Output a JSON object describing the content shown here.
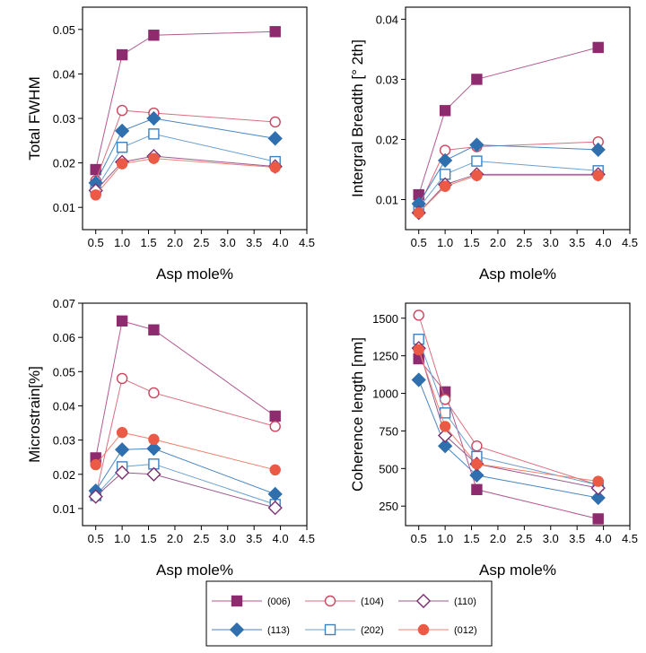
{
  "chart_data": [
    {
      "type": "line",
      "ylabel": "Total FWHM",
      "xlabel": "Asp mole%",
      "x": [
        0.5,
        1.0,
        1.6,
        3.9
      ],
      "xlim": [
        0.25,
        4.5
      ],
      "xticks": [
        "0.5",
        "1.0",
        "1.5",
        "2.0",
        "2.5",
        "3.0",
        "3.5",
        "4.0",
        "4.5"
      ],
      "ylim": [
        0.005,
        0.055
      ],
      "yticks": [
        "0.01",
        "0.02",
        "0.03",
        "0.04",
        "0.05"
      ],
      "series": [
        {
          "name": "(006)",
          "values": [
            0.0185,
            0.0443,
            0.0487,
            0.0495
          ]
        },
        {
          "name": "(104)",
          "values": [
            0.016,
            0.0318,
            0.0312,
            0.0292
          ]
        },
        {
          "name": "(110)",
          "values": [
            0.0138,
            0.0202,
            0.0215,
            0.0192
          ]
        },
        {
          "name": "(113)",
          "values": [
            0.0155,
            0.0272,
            0.03,
            0.0255
          ]
        },
        {
          "name": "(202)",
          "values": [
            0.014,
            0.0235,
            0.0265,
            0.0203
          ]
        },
        {
          "name": "(012)",
          "values": [
            0.0128,
            0.0198,
            0.021,
            0.019
          ]
        }
      ]
    },
    {
      "type": "line",
      "ylabel": "Intergral Breadth [° 2th]",
      "xlabel": "Asp mole%",
      "x": [
        0.5,
        1.0,
        1.6,
        3.9
      ],
      "xlim": [
        0.25,
        4.5
      ],
      "xticks": [
        "0.5",
        "1.0",
        "1.5",
        "2.0",
        "2.5",
        "3.0",
        "3.5",
        "4.0",
        "4.5"
      ],
      "ylim": [
        0.005,
        0.042
      ],
      "yticks": [
        "0.01",
        "0.02",
        "0.03",
        "0.04"
      ],
      "series": [
        {
          "name": "(006)",
          "values": [
            0.0108,
            0.0248,
            0.03,
            0.0353
          ]
        },
        {
          "name": "(104)",
          "values": [
            0.0088,
            0.0182,
            0.0188,
            0.0196
          ]
        },
        {
          "name": "(110)",
          "values": [
            0.0078,
            0.0125,
            0.0142,
            0.0142
          ]
        },
        {
          "name": "(113)",
          "values": [
            0.0093,
            0.0165,
            0.0191,
            0.0183
          ]
        },
        {
          "name": "(202)",
          "values": [
            0.0086,
            0.0142,
            0.0164,
            0.0148
          ]
        },
        {
          "name": "(012)",
          "values": [
            0.0078,
            0.0122,
            0.014,
            0.014
          ]
        }
      ]
    },
    {
      "type": "line",
      "ylabel": "Microstrain[%]",
      "xlabel": "Asp mole%",
      "x": [
        0.5,
        1.0,
        1.6,
        3.9
      ],
      "xlim": [
        0.25,
        4.5
      ],
      "xticks": [
        "0.5",
        "1.0",
        "1.5",
        "2.0",
        "2.5",
        "3.0",
        "3.5",
        "4.0",
        "4.5"
      ],
      "ylim": [
        0.005,
        0.07
      ],
      "yticks": [
        "0.01",
        "0.02",
        "0.03",
        "0.04",
        "0.05",
        "0.06",
        "0.07"
      ],
      "series": [
        {
          "name": "(006)",
          "values": [
            0.0248,
            0.0648,
            0.0622,
            0.037
          ]
        },
        {
          "name": "(104)",
          "values": [
            0.0138,
            0.048,
            0.0438,
            0.034
          ]
        },
        {
          "name": "(110)",
          "values": [
            0.0135,
            0.0205,
            0.02,
            0.0102
          ]
        },
        {
          "name": "(113)",
          "values": [
            0.0152,
            0.0272,
            0.0275,
            0.0142
          ]
        },
        {
          "name": "(202)",
          "values": [
            0.0138,
            0.0222,
            0.023,
            0.0112
          ]
        },
        {
          "name": "(012)",
          "values": [
            0.0228,
            0.0322,
            0.0302,
            0.0213
          ]
        }
      ]
    },
    {
      "type": "line",
      "ylabel": "Coherence length [nm]",
      "xlabel": "Asp mole%",
      "x": [
        0.5,
        1.0,
        1.6,
        3.9
      ],
      "xlim": [
        0.25,
        4.5
      ],
      "xticks": [
        "0.5",
        "1.0",
        "1.5",
        "2.0",
        "2.5",
        "3.0",
        "3.5",
        "4.0",
        "4.5"
      ],
      "ylim": [
        120,
        1600
      ],
      "yticks": [
        "250",
        "500",
        "750",
        "1000",
        "1250",
        "1500"
      ],
      "series": [
        {
          "name": "(006)",
          "values": [
            1230,
            1010,
            360,
            165
          ]
        },
        {
          "name": "(104)",
          "values": [
            1520,
            960,
            650,
            390
          ]
        },
        {
          "name": "(110)",
          "values": [
            1300,
            720,
            530,
            370
          ]
        },
        {
          "name": "(113)",
          "values": [
            1090,
            650,
            455,
            305
          ]
        },
        {
          "name": "(202)",
          "values": [
            1360,
            870,
            580,
            390
          ]
        },
        {
          "name": "(012)",
          "values": [
            1290,
            780,
            530,
            415
          ]
        }
      ]
    }
  ],
  "styles": [
    {
      "name": "(006)",
      "color": "#8e2a6e",
      "line": "#b05a8e",
      "marker": "square",
      "fill": "filled"
    },
    {
      "name": "(104)",
      "color": "#c8475f",
      "line": "#d8707f",
      "marker": "circle",
      "fill": "open"
    },
    {
      "name": "(110)",
      "color": "#7a2f70",
      "line": "#9a5a90",
      "marker": "diamond",
      "fill": "open"
    },
    {
      "name": "(113)",
      "color": "#2f6fae",
      "line": "#4a86c0",
      "marker": "diamond",
      "fill": "filled"
    },
    {
      "name": "(202)",
      "color": "#3d82c0",
      "line": "#6aa0d0",
      "marker": "square",
      "fill": "open"
    },
    {
      "name": "(012)",
      "color": "#ea5a45",
      "line": "#f08070",
      "marker": "circle",
      "fill": "filled"
    }
  ]
}
